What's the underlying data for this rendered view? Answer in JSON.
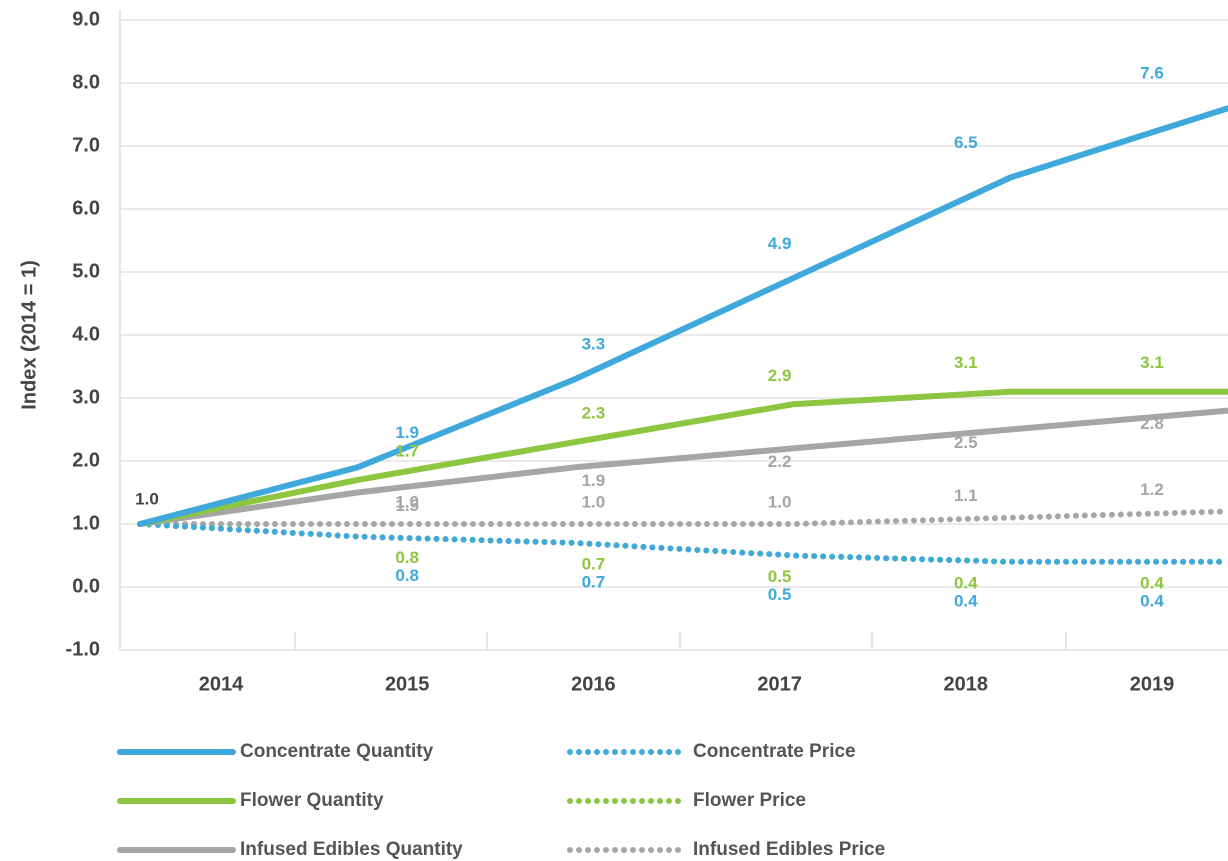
{
  "chart_data": {
    "type": "line",
    "y_axis_label": "Index (2014 = 1)",
    "categories": [
      "2014",
      "2015",
      "2016",
      "2017",
      "2018",
      "2019"
    ],
    "ylim": [
      -1,
      9
    ],
    "yticks": [
      {
        "value": -1,
        "label": "-1.0"
      },
      {
        "value": 0,
        "label": "0.0"
      },
      {
        "value": 1,
        "label": "1.0"
      },
      {
        "value": 2,
        "label": "2.0"
      },
      {
        "value": 3,
        "label": "3.0"
      },
      {
        "value": 4,
        "label": "4.0"
      },
      {
        "value": 5,
        "label": "5.0"
      },
      {
        "value": 6,
        "label": "6.0"
      },
      {
        "value": 7,
        "label": "7.0"
      },
      {
        "value": 8,
        "label": "8.0"
      },
      {
        "value": 9,
        "label": "9.0"
      }
    ],
    "grid": true,
    "series": [
      {
        "name": "Concentrate Quantity",
        "color": "#3fa9dc",
        "style": "solid",
        "values": [
          1.0,
          1.9,
          3.3,
          4.9,
          6.5,
          7.6
        ],
        "value_labels": [
          null,
          "1.9",
          "3.3",
          "4.9",
          "6.5",
          "7.6"
        ]
      },
      {
        "name": "Concentrate Price",
        "color": "#3fa9dc",
        "style": "dotted",
        "values": [
          1.0,
          0.8,
          0.7,
          0.5,
          0.4,
          0.4
        ],
        "value_labels": [
          null,
          "0.8",
          "0.7",
          "0.5",
          "0.4",
          "0.4"
        ]
      },
      {
        "name": "Flower Quantity",
        "color": "#8dc641",
        "style": "solid",
        "values": [
          1.0,
          1.7,
          2.3,
          2.9,
          3.1,
          3.1
        ],
        "value_labels": [
          null,
          "1.7",
          "2.3",
          "2.9",
          "3.1",
          "3.1"
        ]
      },
      {
        "name": "Flower Price",
        "color": "#8dc641",
        "style": "dotted",
        "values": [
          1.0,
          0.8,
          0.7,
          0.5,
          0.4,
          0.4
        ],
        "value_labels": [
          null,
          "0.8",
          "0.7",
          "0.5",
          "0.4",
          "0.4"
        ]
      },
      {
        "name": "Infused Edibles Quantity",
        "color": "#a6a6a6",
        "style": "solid",
        "values": [
          1.0,
          1.5,
          1.9,
          2.2,
          2.5,
          2.8
        ],
        "value_labels": [
          "1.0",
          "1.5",
          "1.9",
          "2.2",
          "2.5",
          "2.8"
        ]
      },
      {
        "name": "Infused Edibles Price",
        "color": "#a6a6a6",
        "style": "dotted",
        "values": [
          1.0,
          1.0,
          1.0,
          1.0,
          1.1,
          1.2
        ],
        "value_labels": [
          null,
          "1.0",
          "1.0",
          "1.0",
          "1.1",
          "1.2"
        ]
      }
    ]
  }
}
